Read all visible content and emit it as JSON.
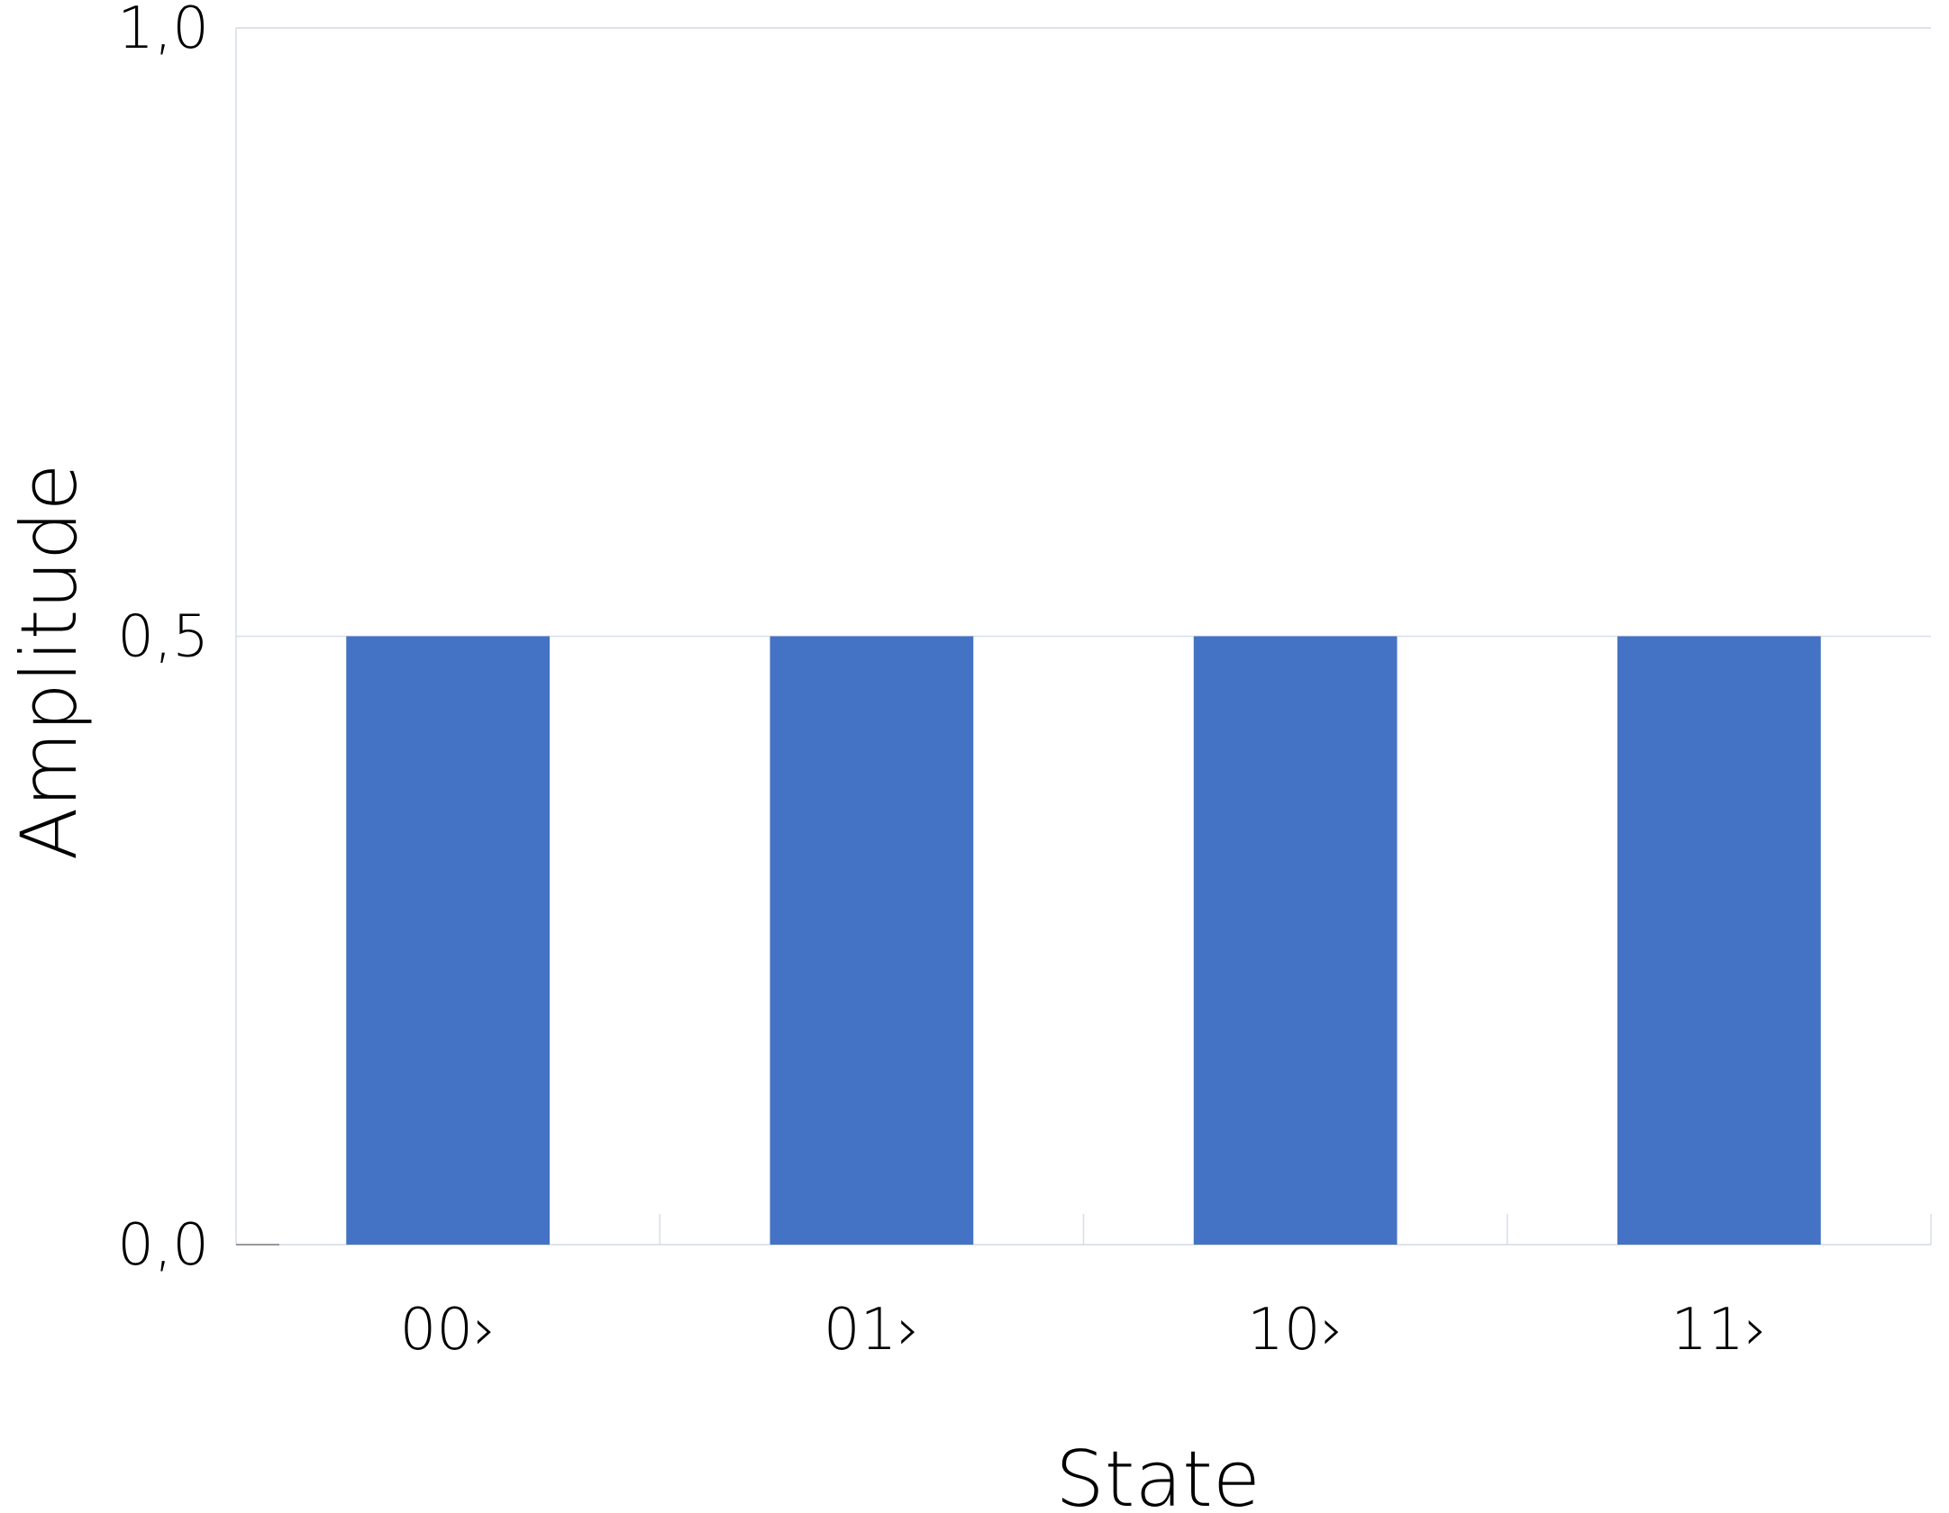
{
  "chart_data": {
    "type": "bar",
    "categories": [
      "00›",
      "01›",
      "10›",
      "11›"
    ],
    "values": [
      0.5,
      0.5,
      0.5,
      0.5
    ],
    "title": "",
    "xlabel": "State",
    "ylabel": "Amplitude",
    "ylim": [
      0,
      1.0
    ],
    "yticks": [
      "0,0",
      "0,5",
      "1,0"
    ],
    "ytick_values": [
      0,
      0.5,
      1.0
    ],
    "grid": true,
    "legend": "none",
    "bar_color": "#4472C4",
    "grid_color": "#D9DDE8"
  }
}
